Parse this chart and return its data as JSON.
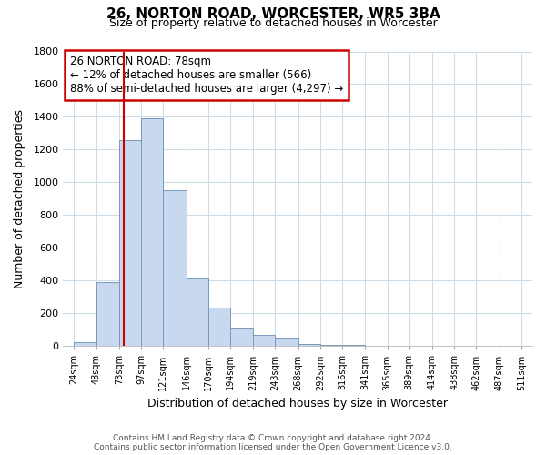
{
  "title": "26, NORTON ROAD, WORCESTER, WR5 3BA",
  "subtitle": "Size of property relative to detached houses in Worcester",
  "xlabel": "Distribution of detached houses by size in Worcester",
  "ylabel": "Number of detached properties",
  "bin_labels": [
    "24sqm",
    "48sqm",
    "73sqm",
    "97sqm",
    "121sqm",
    "146sqm",
    "170sqm",
    "194sqm",
    "219sqm",
    "243sqm",
    "268sqm",
    "292sqm",
    "316sqm",
    "341sqm",
    "365sqm",
    "389sqm",
    "414sqm",
    "438sqm",
    "462sqm",
    "487sqm",
    "511sqm"
  ],
  "bar_values": [
    25,
    390,
    1260,
    1390,
    950,
    415,
    235,
    110,
    70,
    50,
    15,
    5,
    5,
    0,
    0,
    0,
    0,
    0,
    0,
    0,
    0
  ],
  "bar_color": "#c8d8ee",
  "bar_edge_color": "#7799bb",
  "property_line_color": "#cc0000",
  "annotation_title": "26 NORTON ROAD: 78sqm",
  "annotation_line1": "← 12% of detached houses are smaller (566)",
  "annotation_line2": "88% of semi-detached houses are larger (4,297) →",
  "annotation_box_color": "#cc0000",
  "ylim": [
    0,
    1800
  ],
  "yticks": [
    0,
    200,
    400,
    600,
    800,
    1000,
    1200,
    1400,
    1600,
    1800
  ],
  "footer_line1": "Contains HM Land Registry data © Crown copyright and database right 2024.",
  "footer_line2": "Contains public sector information licensed under the Open Government Licence v3.0.",
  "grid_color": "#d0dde8"
}
